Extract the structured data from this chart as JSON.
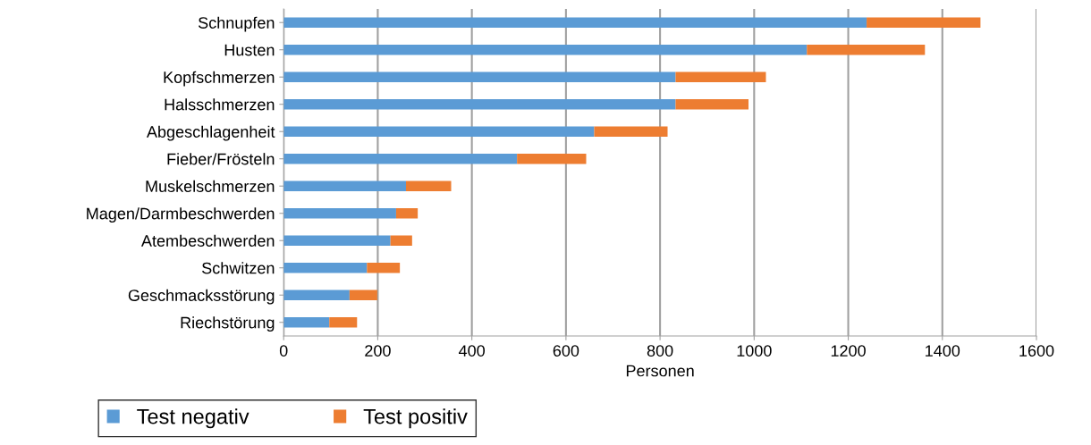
{
  "chart_data": {
    "type": "bar",
    "orientation": "horizontal",
    "stacked": true,
    "xlabel": "Personen",
    "categories": [
      "Schnupfen",
      "Husten",
      "Kopfschmerzen",
      "Halsschmerzen",
      "Abgeschlagenheit",
      "Fieber/Frösteln",
      "Muskelschmerzen",
      "Magen/Darmbeschwerden",
      "Atembeschwerden",
      "Schwitzen",
      "Geschmacksstörung",
      "Riechstörung"
    ],
    "series": [
      {
        "name": "Test negativ",
        "color": "#5b9bd5",
        "values": [
          1239,
          1112,
          833,
          833,
          660,
          496,
          260,
          239,
          227,
          177,
          140,
          97
        ]
      },
      {
        "name": "Test positiv",
        "color": "#ed7d31",
        "values": [
          242,
          251,
          192,
          155,
          156,
          147,
          96,
          46,
          46,
          70,
          59,
          59
        ]
      }
    ],
    "xlim": [
      0,
      1600
    ],
    "xticks": [
      0,
      200,
      400,
      600,
      800,
      1000,
      1200,
      1400,
      1600
    ],
    "grid": "x",
    "legend": "bottom left"
  }
}
